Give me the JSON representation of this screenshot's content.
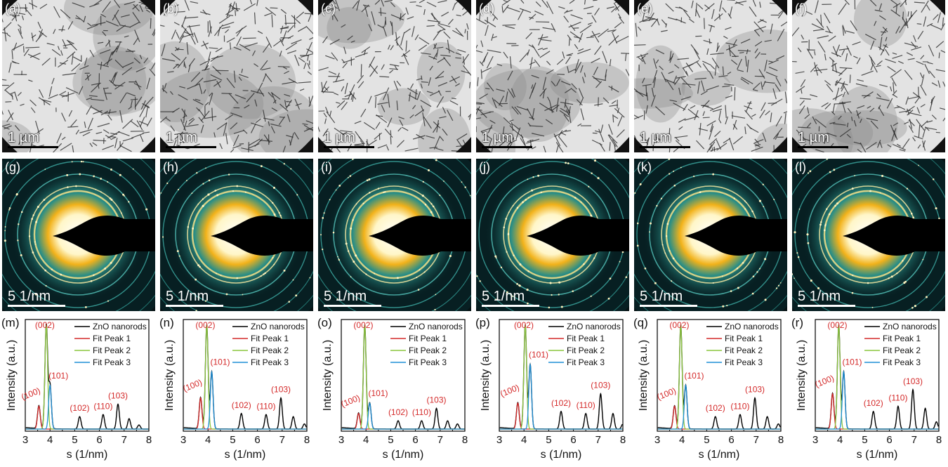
{
  "tem_panels": [
    {
      "label": "(a)",
      "scale": "1 µm"
    },
    {
      "label": "(b)",
      "scale": "1 µm"
    },
    {
      "label": "(c)",
      "scale": "1 µm"
    },
    {
      "label": "(d)",
      "scale": "1 µm"
    },
    {
      "label": "(e)",
      "scale": "1 µm"
    },
    {
      "label": "(f)",
      "scale": "1 µm"
    }
  ],
  "saed_panels": [
    {
      "label": "(g)",
      "scale": "5 1/nm"
    },
    {
      "label": "(h)",
      "scale": "5 1/nm"
    },
    {
      "label": "(i)",
      "scale": "5 1/nm"
    },
    {
      "label": "(j)",
      "scale": "5 1/nm"
    },
    {
      "label": "(k)",
      "scale": "5 1/nm"
    },
    {
      "label": "(l)",
      "scale": "5 1/nm"
    }
  ],
  "colors": {
    "data": "#000000",
    "fit1": "#d42a2a",
    "fit2": "#8cc63f",
    "fit3": "#1f8fd6",
    "annotation": "#d42a2a"
  },
  "chart_data": [
    {
      "label": "(m)",
      "type": "line",
      "xlabel": "s (1/nm)",
      "ylabel": "Intensity (a.u.)",
      "xlim": [
        3,
        8
      ],
      "xticks": [
        3,
        4,
        5,
        6,
        7,
        8
      ],
      "legend": [
        "ZnO nanorods",
        "Fit Peak 1",
        "Fit Peak 2",
        "Fit Peak 3"
      ],
      "peaks": [
        {
          "hkl": "(100)",
          "x": 3.55,
          "h": 0.22
        },
        {
          "hkl": "(002)",
          "x": 3.85,
          "h": 1.0
        },
        {
          "hkl": "(101)",
          "x": 4.0,
          "h": 0.42
        },
        {
          "hkl": "(102)",
          "x": 5.2,
          "h": 0.12
        },
        {
          "hkl": "(110)",
          "x": 6.15,
          "h": 0.14
        },
        {
          "hkl": "(103)",
          "x": 6.75,
          "h": 0.24
        }
      ],
      "extra_peaks": [
        {
          "x": 7.2,
          "h": 0.1
        },
        {
          "x": 7.6,
          "h": 0.04
        }
      ]
    },
    {
      "label": "(n)",
      "type": "line",
      "xlabel": "s (1/nm)",
      "ylabel": "Intensity (a.u.)",
      "xlim": [
        3,
        8
      ],
      "xticks": [
        3,
        4,
        5,
        6,
        7,
        8
      ],
      "legend": [
        "ZnO nanorods",
        "Fit Peak 1",
        "Fit Peak 2",
        "Fit Peak 3"
      ],
      "peaks": [
        {
          "hkl": "(100)",
          "x": 3.7,
          "h": 0.3
        },
        {
          "hkl": "(002)",
          "x": 3.95,
          "h": 1.0
        },
        {
          "hkl": "(101)",
          "x": 4.15,
          "h": 0.55
        },
        {
          "hkl": "(102)",
          "x": 5.35,
          "h": 0.15
        },
        {
          "hkl": "(110)",
          "x": 6.35,
          "h": 0.14
        },
        {
          "hkl": "(103)",
          "x": 6.95,
          "h": 0.3
        }
      ],
      "extra_peaks": [
        {
          "x": 7.45,
          "h": 0.12
        },
        {
          "x": 7.9,
          "h": 0.05
        }
      ]
    },
    {
      "label": "(o)",
      "type": "line",
      "xlabel": "s (1/nm)",
      "ylabel": "Intensity (a.u.)",
      "xlim": [
        3,
        8
      ],
      "xticks": [
        3,
        4,
        5,
        6,
        7,
        8
      ],
      "legend": [
        "ZnO nanorods",
        "Fit Peak 1",
        "Fit Peak 2",
        "Fit Peak 3"
      ],
      "peaks": [
        {
          "hkl": "(100)",
          "x": 3.7,
          "h": 0.15
        },
        {
          "hkl": "(002)",
          "x": 3.95,
          "h": 1.0
        },
        {
          "hkl": "(101)",
          "x": 4.15,
          "h": 0.25
        },
        {
          "hkl": "(102)",
          "x": 5.3,
          "h": 0.08
        },
        {
          "hkl": "(110)",
          "x": 6.25,
          "h": 0.08
        },
        {
          "hkl": "(103)",
          "x": 6.85,
          "h": 0.2
        }
      ],
      "extra_peaks": [
        {
          "x": 7.3,
          "h": 0.08
        },
        {
          "x": 7.7,
          "h": 0.05
        }
      ]
    },
    {
      "label": "(p)",
      "type": "line",
      "xlabel": "s (1/nm)",
      "ylabel": "Intensity (a.u.)",
      "xlim": [
        3,
        8
      ],
      "xticks": [
        3,
        4,
        5,
        6,
        7,
        8
      ],
      "legend": [
        "ZnO nanorods",
        "Fit Peak 1",
        "Fit Peak 2",
        "Fit Peak 3"
      ],
      "peaks": [
        {
          "hkl": "(100)",
          "x": 3.75,
          "h": 0.25
        },
        {
          "hkl": "(002)",
          "x": 4.05,
          "h": 1.0
        },
        {
          "hkl": "(101)",
          "x": 4.25,
          "h": 0.62
        },
        {
          "hkl": "(102)",
          "x": 5.5,
          "h": 0.17
        },
        {
          "hkl": "(110)",
          "x": 6.5,
          "h": 0.15
        },
        {
          "hkl": "(103)",
          "x": 7.1,
          "h": 0.34
        }
      ],
      "extra_peaks": [
        {
          "x": 7.6,
          "h": 0.15
        },
        {
          "x": 8.0,
          "h": 0.05
        }
      ]
    },
    {
      "label": "(q)",
      "type": "line",
      "xlabel": "s (1/nm)",
      "ylabel": "Intensity (a.u.)",
      "xlim": [
        3,
        8
      ],
      "xticks": [
        3,
        4,
        5,
        6,
        7,
        8
      ],
      "legend": [
        "ZnO nanorods",
        "Fit Peak 1",
        "Fit Peak 2",
        "Fit Peak 3"
      ],
      "peaks": [
        {
          "hkl": "(100)",
          "x": 3.7,
          "h": 0.22
        },
        {
          "hkl": "(002)",
          "x": 3.95,
          "h": 1.0
        },
        {
          "hkl": "(101)",
          "x": 4.15,
          "h": 0.42
        },
        {
          "hkl": "(102)",
          "x": 5.35,
          "h": 0.12
        },
        {
          "hkl": "(110)",
          "x": 6.35,
          "h": 0.14
        },
        {
          "hkl": "(103)",
          "x": 6.95,
          "h": 0.3
        }
      ],
      "extra_peaks": [
        {
          "x": 7.45,
          "h": 0.12
        },
        {
          "x": 7.9,
          "h": 0.05
        }
      ]
    },
    {
      "label": "(r)",
      "type": "line",
      "xlabel": "s (1/nm)",
      "ylabel": "Intensity (a.u.)",
      "xlim": [
        3,
        8
      ],
      "xticks": [
        3,
        4,
        5,
        6,
        7,
        8
      ],
      "legend": [
        "ZnO nanorods",
        "Fit Peak 1",
        "Fit Peak 2",
        "Fit Peak 3"
      ],
      "peaks": [
        {
          "hkl": "(100)",
          "x": 3.7,
          "h": 0.34
        },
        {
          "hkl": "(002)",
          "x": 3.95,
          "h": 1.0
        },
        {
          "hkl": "(101)",
          "x": 4.15,
          "h": 0.55
        },
        {
          "hkl": "(102)",
          "x": 5.35,
          "h": 0.17
        },
        {
          "hkl": "(110)",
          "x": 6.35,
          "h": 0.22
        },
        {
          "hkl": "(103)",
          "x": 6.95,
          "h": 0.38
        }
      ],
      "extra_peaks": [
        {
          "x": 7.45,
          "h": 0.2
        },
        {
          "x": 7.9,
          "h": 0.07
        }
      ]
    }
  ]
}
